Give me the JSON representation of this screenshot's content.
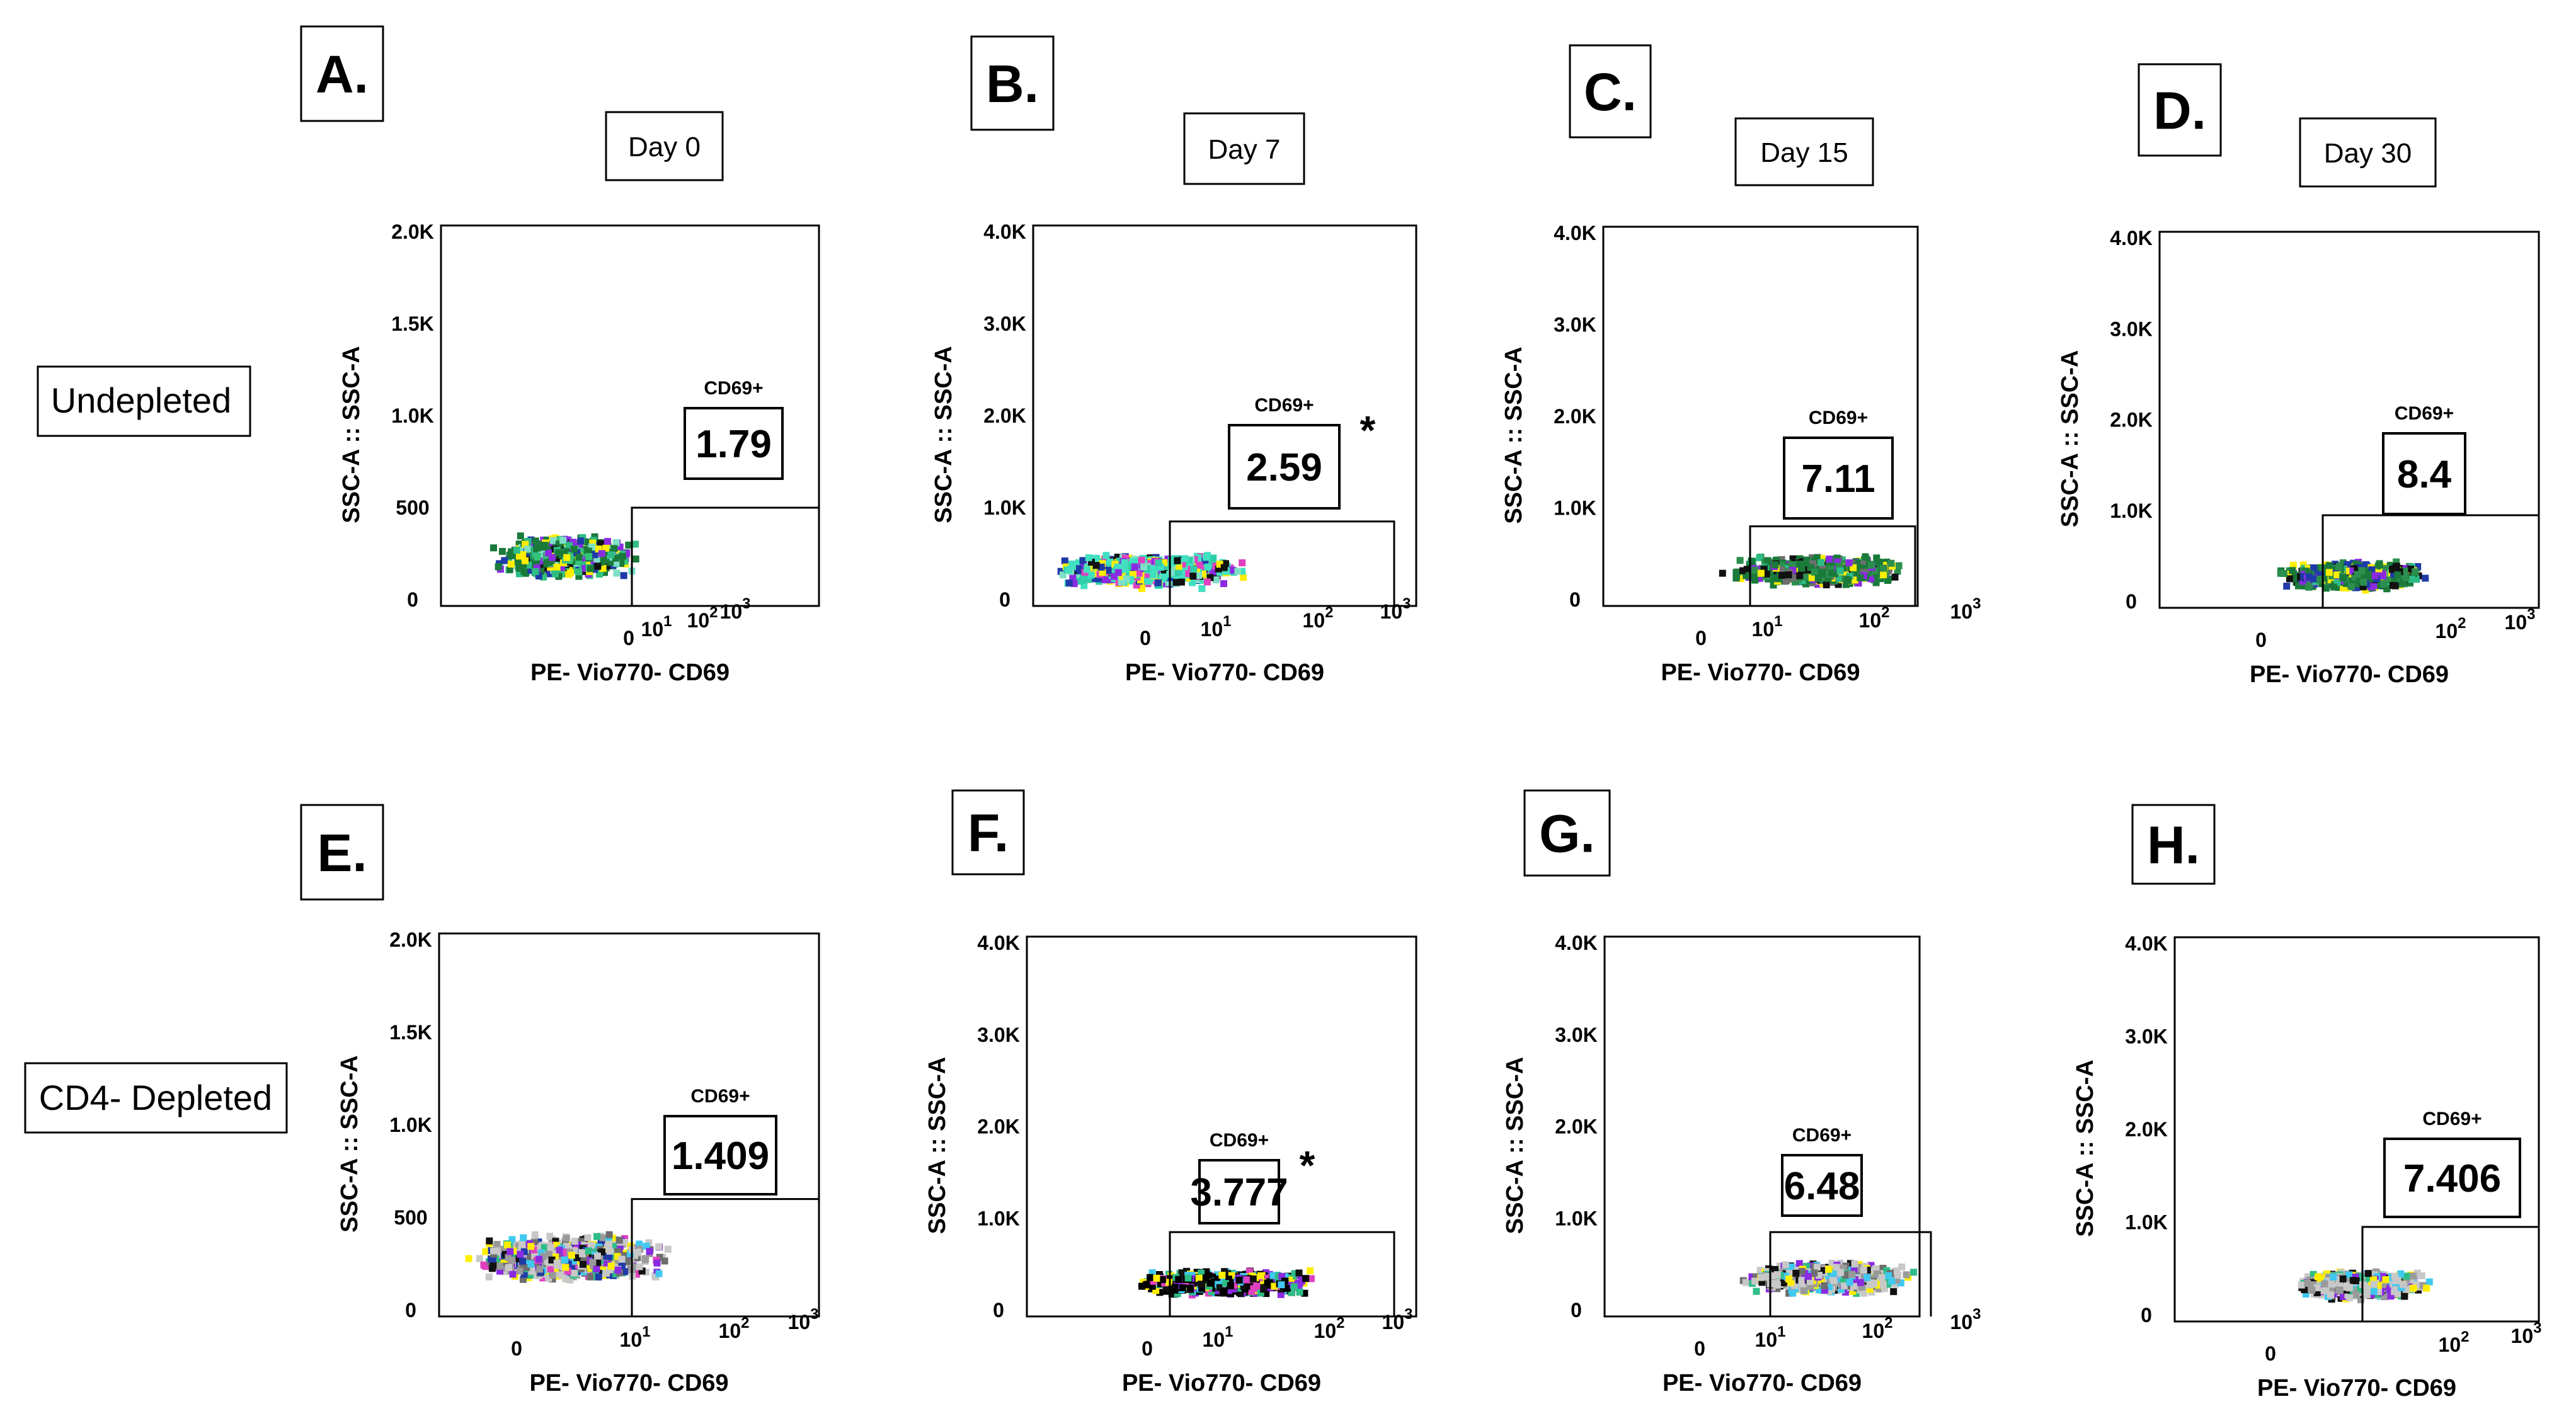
{
  "chart_data": [
    {
      "type": "scatter",
      "panel_label": "A.",
      "day_label": "Day 0",
      "row_label": "Undepleted",
      "ylabel": "SSC-A :: SSC-A",
      "xlabel": "PE- Vio770- CD69",
      "yticks": [
        "0",
        "500",
        "1.0K",
        "1.5K",
        "2.0K"
      ],
      "ylim": [
        0,
        2000
      ],
      "xticks": [
        "0",
        "10^1",
        "10^2",
        "10^3"
      ],
      "gate": {
        "name": "CD69+",
        "value": "1.79",
        "star": false,
        "y_top": 500
      },
      "population": {
        "y_center": 250,
        "y_spread": 120,
        "colors": [
          "#1a7a3a",
          "#2ebd86",
          "#35c47a",
          "#ffee00",
          "#8a2be2",
          "#1f3aa8",
          "#111111",
          "#7fe0c8"
        ]
      }
    },
    {
      "type": "scatter",
      "panel_label": "B.",
      "day_label": "Day 7",
      "ylabel": "SSC-A :: SSC-A",
      "xlabel": "PE- Vio770- CD69",
      "yticks": [
        "0",
        "1.0K",
        "2.0K",
        "3.0K",
        "4.0K"
      ],
      "ylim": [
        0,
        4000
      ],
      "xticks": [
        "0",
        "10^1",
        "10^2",
        "10^3"
      ],
      "gate": {
        "name": "CD69+",
        "value": "2.59",
        "star": true,
        "y_top": 850
      },
      "population": {
        "y_center": 350,
        "y_spread": 200,
        "colors": [
          "#40e0c0",
          "#2ecfa8",
          "#7fe0c8",
          "#ffee00",
          "#8a2be2",
          "#1f3aa8",
          "#111111",
          "#e040c0"
        ]
      }
    },
    {
      "type": "scatter",
      "panel_label": "C.",
      "day_label": "Day 15",
      "ylabel": "SSC-A :: SSC-A",
      "xlabel": "PE- Vio770- CD69",
      "yticks": [
        "0",
        "1.0K",
        "2.0K",
        "3.0K",
        "4.0K"
      ],
      "ylim": [
        0,
        4000
      ],
      "xticks": [
        "0",
        "10^1",
        "10^2",
        "10^3"
      ],
      "gate": {
        "name": "CD69+",
        "value": "7.11",
        "star": false,
        "y_top": 800
      },
      "population": {
        "y_center": 350,
        "y_spread": 180,
        "colors": [
          "#1a7a3a",
          "#2d8f4e",
          "#6e6e6e",
          "#ffee00",
          "#8a2be2",
          "#2ebd86",
          "#111111"
        ]
      }
    },
    {
      "type": "scatter",
      "panel_label": "D.",
      "day_label": "Day 30",
      "ylabel": "SSC-A :: SSC-A",
      "xlabel": "PE- Vio770- CD69",
      "yticks": [
        "0",
        "1.0K",
        "2.0K",
        "3.0K",
        "4.0K"
      ],
      "ylim": [
        0,
        4000
      ],
      "xticks": [
        "0",
        "10^2",
        "10^3"
      ],
      "gate": {
        "name": "CD69+",
        "value": "8.4",
        "star": false,
        "y_top": 950
      },
      "population": {
        "y_center": 320,
        "y_spread": 170,
        "colors": [
          "#1a7a3a",
          "#2d8f4e",
          "#1f3aa8",
          "#ffee00",
          "#8a2be2",
          "#111111",
          "#2ebd86"
        ]
      }
    },
    {
      "type": "scatter",
      "panel_label": "E.",
      "row_label": "CD4- Depleted",
      "ylabel": "SSC-A :: SSC-A",
      "xlabel": "PE- Vio770- CD69",
      "yticks": [
        "0",
        "500",
        "1.0K",
        "1.5K",
        "2.0K"
      ],
      "ylim": [
        0,
        2000
      ],
      "xticks": [
        "0",
        "10^1",
        "10^2",
        "10^3"
      ],
      "gate": {
        "name": "CD69+",
        "value": "1.409",
        "star": false,
        "y_top": 600
      },
      "population": {
        "y_center": 300,
        "y_spread": 140,
        "colors": [
          "#c8c8c8",
          "#9a9a9a",
          "#6e6e6e",
          "#ffee00",
          "#8a2be2",
          "#1f3aa8",
          "#111111",
          "#e040c0",
          "#40c8f0",
          "#2ebd86"
        ]
      }
    },
    {
      "type": "scatter",
      "panel_label": "F.",
      "ylabel": "SSC-A :: SSC-A",
      "xlabel": "PE- Vio770- CD69",
      "yticks": [
        "0",
        "1.0K",
        "2.0K",
        "3.0K",
        "4.0K"
      ],
      "ylim": [
        0,
        4000
      ],
      "xticks": [
        "0",
        "10^1",
        "10^2",
        "10^3"
      ],
      "gate": {
        "name": "CD69+",
        "value": "3.777",
        "star": true,
        "y_top": 850
      },
      "population": {
        "y_center": 330,
        "y_spread": 160,
        "colors": [
          "#000000",
          "#111111",
          "#ffee00",
          "#8a2be2",
          "#e040c0",
          "#2ebd86",
          "#40c8f0"
        ]
      }
    },
    {
      "type": "scatter",
      "panel_label": "G.",
      "ylabel": "SSC-A :: SSC-A",
      "xlabel": "PE- Vio770- CD69",
      "yticks": [
        "0",
        "1.0K",
        "2.0K",
        "3.0K",
        "4.0K"
      ],
      "ylim": [
        0,
        4000
      ],
      "xticks": [
        "0",
        "10^1",
        "10^2",
        "10^3"
      ],
      "gate": {
        "name": "CD69+",
        "value": "6.48",
        "star": false,
        "y_top": 850
      },
      "population": {
        "y_center": 380,
        "y_spread": 190,
        "colors": [
          "#c8c8c8",
          "#9a9a9a",
          "#6e6e6e",
          "#ffee00",
          "#8a2be2",
          "#40c8f0",
          "#111111",
          "#2ebd86"
        ]
      }
    },
    {
      "type": "scatter",
      "panel_label": "H.",
      "ylabel": "SSC-A :: SSC-A",
      "xlabel": "PE- Vio770- CD69",
      "yticks": [
        "0",
        "1.0K",
        "2.0K",
        "3.0K",
        "4.0K"
      ],
      "ylim": [
        0,
        4000
      ],
      "xticks": [
        "0",
        "10^2",
        "10^3"
      ],
      "gate": {
        "name": "CD69+",
        "value": "7.406",
        "star": false,
        "y_top": 950
      },
      "population": {
        "y_center": 360,
        "y_spread": 170,
        "colors": [
          "#c8c8c8",
          "#9a9a9a",
          "#40c8f0",
          "#ffee00",
          "#8a2be2",
          "#111111",
          "#2ebd86"
        ]
      }
    }
  ]
}
